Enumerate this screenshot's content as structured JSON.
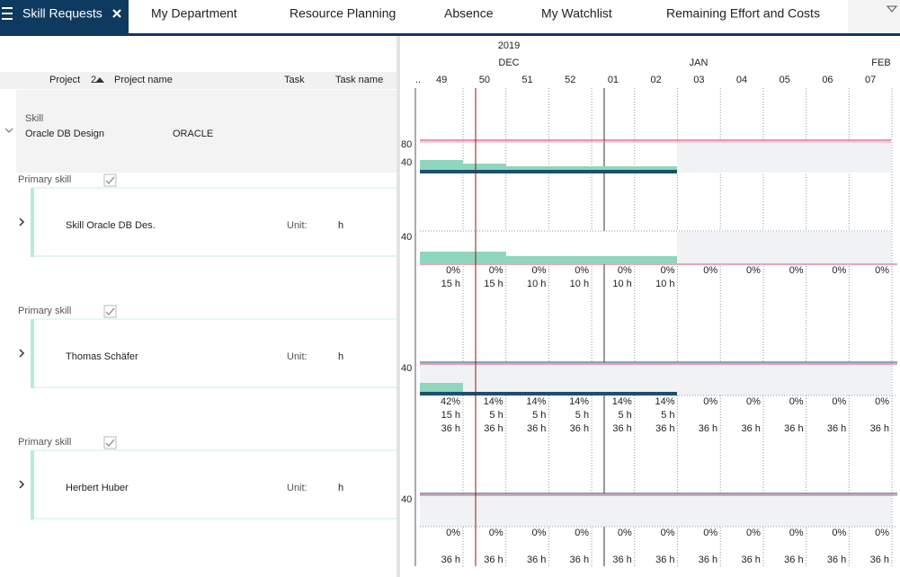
{
  "tabs": [
    "Skill Requests",
    "My Department",
    "Resource Planning",
    "Absence",
    "My Watchlist",
    "Remaining Effort and Costs"
  ],
  "columns": {
    "project": "Project",
    "sort": "2",
    "project_name": "Project name",
    "task": "Task",
    "task_name": "Task name"
  },
  "timeline": {
    "year": "2019",
    "months": [
      "DEC",
      "JAN",
      "FEB"
    ],
    "weeks": [
      "..",
      "49",
      "50",
      "51",
      "52",
      "01",
      "02",
      "03",
      "04",
      "05",
      "06",
      "07"
    ]
  },
  "group": {
    "type": "Skill",
    "name": "Oracle DB Design",
    "project_name": "ORACLE",
    "axis_labels": [
      "80",
      "40"
    ]
  },
  "rows": [
    {
      "section": "Primary skill",
      "name": "Skill Oracle DB Des.",
      "unit_label": "Unit:",
      "unit": "h",
      "axis_label": "40",
      "percent": [
        "0%",
        "0%",
        "0%",
        "0%",
        "0%",
        "0%",
        "0%",
        "0%",
        "0%",
        "0%",
        "0%"
      ],
      "hours": [
        "15 h",
        "15 h",
        "10 h",
        "10 h",
        "10 h",
        "10 h"
      ]
    },
    {
      "section": "Primary skill",
      "name": "Thomas Schäfer",
      "unit_label": "Unit:",
      "unit": "h",
      "axis_label": "40",
      "percent": [
        "42%",
        "14%",
        "14%",
        "14%",
        "14%",
        "14%",
        "0%",
        "0%",
        "0%",
        "0%",
        "0%"
      ],
      "hours": [
        "15 h",
        "5 h",
        "5 h",
        "5 h",
        "5 h",
        "5 h"
      ],
      "capacity": [
        "36 h",
        "36 h",
        "36 h",
        "36 h",
        "36 h",
        "36 h",
        "36 h",
        "36 h",
        "36 h",
        "36 h",
        "36 h"
      ]
    },
    {
      "section": "Primary skill",
      "name": "Herbert Huber",
      "unit_label": "Unit:",
      "unit": "h",
      "axis_label": "40",
      "percent": [
        "0%",
        "0%",
        "0%",
        "0%",
        "0%",
        "0%",
        "0%",
        "0%",
        "0%",
        "0%",
        "0%"
      ],
      "capacity": [
        "36 h",
        "36 h",
        "36 h",
        "36 h",
        "36 h",
        "36 h",
        "36 h",
        "36 h",
        "36 h",
        "36 h",
        "36 h"
      ]
    }
  ]
}
